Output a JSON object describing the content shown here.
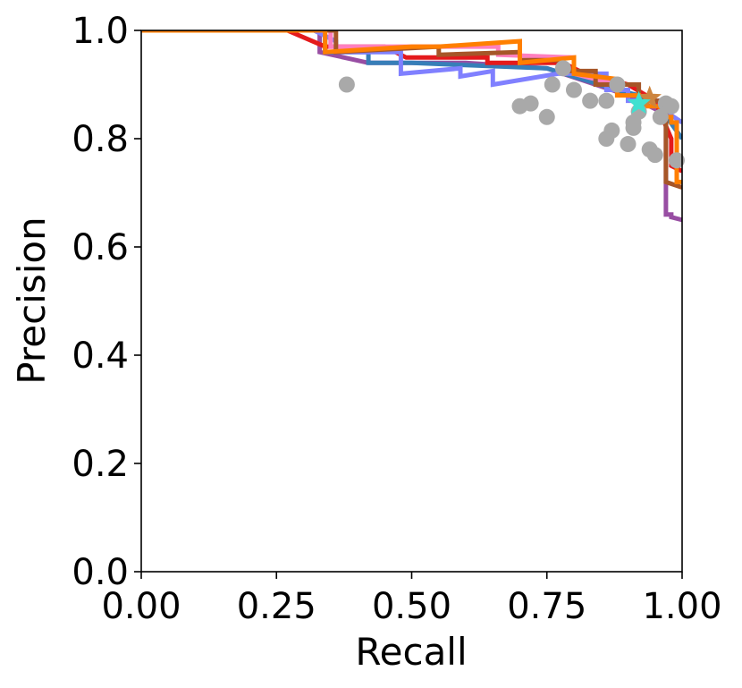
{
  "chart_data": {
    "type": "line",
    "title": "",
    "xlabel": "Recall",
    "ylabel": "Precision",
    "xlim": [
      0,
      1
    ],
    "ylim": [
      0,
      1
    ],
    "x_ticks": [
      "0.00",
      "0.25",
      "0.50",
      "0.75",
      "1.00"
    ],
    "y_ticks": [
      "0.0",
      "0.2",
      "0.4",
      "0.6",
      "0.8",
      "1.0"
    ],
    "grid": false,
    "legend": "none",
    "series": [
      {
        "color": "#984ea3",
        "points": [
          [
            0,
            1.0
          ],
          [
            0.33,
            1.0
          ],
          [
            0.33,
            0.96
          ],
          [
            0.42,
            0.94
          ],
          [
            0.48,
            0.94
          ],
          [
            0.6,
            0.94
          ],
          [
            0.75,
            0.93
          ],
          [
            0.9,
            0.88
          ],
          [
            0.96,
            0.85
          ],
          [
            0.97,
            0.83
          ],
          [
            0.97,
            0.66
          ],
          [
            0.98,
            0.66
          ],
          [
            0.98,
            0.655
          ],
          [
            1.0,
            0.65
          ]
        ]
      },
      {
        "color": "#377eb8",
        "points": [
          [
            0,
            1.0
          ],
          [
            0.32,
            1.0
          ],
          [
            0.34,
            0.99
          ],
          [
            0.34,
            0.96
          ],
          [
            0.42,
            0.96
          ],
          [
            0.42,
            0.94
          ],
          [
            0.5,
            0.94
          ],
          [
            0.75,
            0.93
          ],
          [
            0.88,
            0.89
          ],
          [
            0.92,
            0.88
          ],
          [
            0.95,
            0.87
          ],
          [
            1.0,
            0.8
          ]
        ]
      },
      {
        "color": "#e41a1c",
        "points": [
          [
            0,
            1.0
          ],
          [
            0.27,
            1.0
          ],
          [
            0.34,
            0.97
          ],
          [
            0.45,
            0.97
          ],
          [
            0.49,
            0.95
          ],
          [
            0.64,
            0.95
          ],
          [
            0.64,
            0.94
          ],
          [
            0.78,
            0.94
          ],
          [
            0.82,
            0.92
          ],
          [
            0.9,
            0.9
          ],
          [
            0.95,
            0.87
          ],
          [
            0.98,
            0.8
          ],
          [
            0.98,
            0.75
          ],
          [
            1.0,
            0.74
          ]
        ]
      },
      {
        "color": "#8080ff",
        "points": [
          [
            0,
            1.0
          ],
          [
            0.32,
            1.0
          ],
          [
            0.36,
            0.98
          ],
          [
            0.36,
            0.96
          ],
          [
            0.48,
            0.96
          ],
          [
            0.48,
            0.92
          ],
          [
            0.59,
            0.93
          ],
          [
            0.59,
            0.915
          ],
          [
            0.65,
            0.925
          ],
          [
            0.65,
            0.9
          ],
          [
            0.77,
            0.92
          ],
          [
            0.86,
            0.92
          ],
          [
            0.86,
            0.89
          ],
          [
            0.9,
            0.89
          ],
          [
            0.9,
            0.87
          ],
          [
            0.97,
            0.87
          ],
          [
            0.97,
            0.85
          ],
          [
            1.0,
            0.83
          ]
        ]
      },
      {
        "color": "#ff7fbf",
        "points": [
          [
            0,
            1.0
          ],
          [
            0.35,
            1.0
          ],
          [
            0.35,
            0.97
          ],
          [
            0.66,
            0.97
          ],
          [
            0.66,
            0.955
          ],
          [
            0.8,
            0.95
          ],
          [
            0.8,
            0.92
          ],
          [
            0.88,
            0.9
          ]
        ]
      },
      {
        "color": "#a65628",
        "points": [
          [
            0,
            1.0
          ],
          [
            0.36,
            1.0
          ],
          [
            0.36,
            0.96
          ],
          [
            0.55,
            0.97
          ],
          [
            0.55,
            0.955
          ],
          [
            0.7,
            0.96
          ],
          [
            0.7,
            0.945
          ],
          [
            0.78,
            0.945
          ],
          [
            0.78,
            0.925
          ],
          [
            0.84,
            0.925
          ],
          [
            0.84,
            0.9
          ],
          [
            0.92,
            0.9
          ],
          [
            0.92,
            0.87
          ],
          [
            0.97,
            0.87
          ],
          [
            0.97,
            0.72
          ],
          [
            1.0,
            0.71
          ]
        ]
      },
      {
        "color": "#ff7f00",
        "points": [
          [
            0,
            1.0
          ],
          [
            0.34,
            1.0
          ],
          [
            0.34,
            0.96
          ],
          [
            0.5,
            0.97
          ],
          [
            0.55,
            0.97
          ],
          [
            0.7,
            0.98
          ],
          [
            0.7,
            0.94
          ],
          [
            0.8,
            0.95
          ],
          [
            0.8,
            0.92
          ],
          [
            0.88,
            0.91
          ],
          [
            0.88,
            0.88
          ],
          [
            0.92,
            0.88
          ],
          [
            0.92,
            0.86
          ],
          [
            0.96,
            0.86
          ],
          [
            0.96,
            0.84
          ],
          [
            0.98,
            0.84
          ],
          [
            0.98,
            0.83
          ],
          [
            0.99,
            0.83
          ],
          [
            0.99,
            0.72
          ],
          [
            1.0,
            0.72
          ]
        ]
      }
    ],
    "scatter": {
      "color": "#a9a9a9",
      "points": [
        [
          0.38,
          0.9
        ],
        [
          0.7,
          0.86
        ],
        [
          0.72,
          0.865
        ],
        [
          0.75,
          0.84
        ],
        [
          0.76,
          0.9
        ],
        [
          0.78,
          0.93
        ],
        [
          0.8,
          0.89
        ],
        [
          0.83,
          0.87
        ],
        [
          0.86,
          0.8
        ],
        [
          0.86,
          0.87
        ],
        [
          0.87,
          0.815
        ],
        [
          0.88,
          0.9
        ],
        [
          0.9,
          0.79
        ],
        [
          0.91,
          0.82
        ],
        [
          0.91,
          0.83
        ],
        [
          0.92,
          0.85
        ],
        [
          0.94,
          0.78
        ],
        [
          0.95,
          0.77
        ],
        [
          0.96,
          0.84
        ],
        [
          0.97,
          0.865
        ],
        [
          0.98,
          0.86
        ],
        [
          0.99,
          0.76
        ]
      ]
    },
    "markers": [
      {
        "shape": "star",
        "color": "#cd853f",
        "x": 0.94,
        "y": 0.875
      },
      {
        "shape": "star",
        "color": "#40e0d0",
        "x": 0.92,
        "y": 0.865
      }
    ]
  }
}
